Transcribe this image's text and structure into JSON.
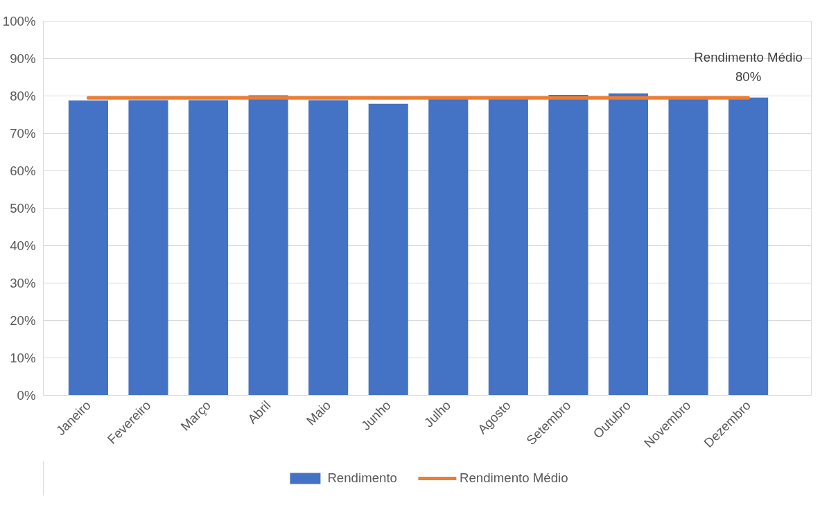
{
  "chart_data": {
    "type": "bar",
    "categories": [
      "Janeiro",
      "Fevereiro",
      "Março",
      "Abril",
      "Maio",
      "Junho",
      "Julho",
      "Agosto",
      "Setembro",
      "Outubro",
      "Novembro",
      "Dezembro"
    ],
    "series": [
      {
        "name": "Rendimento",
        "color": "#4472c4",
        "values": [
          78.8,
          78.9,
          78.9,
          80.2,
          78.9,
          77.9,
          79.2,
          79.2,
          80.3,
          80.7,
          79.2,
          79.6
        ]
      },
      {
        "name": "Rendimento Médio",
        "type": "line",
        "color": "#ed7d31",
        "values": [
          79.5,
          79.5,
          79.5,
          79.5,
          79.5,
          79.5,
          79.5,
          79.5,
          79.5,
          79.5,
          79.5,
          79.5
        ]
      }
    ],
    "annotations": [
      "Rendimento Médio",
      "80%"
    ],
    "ylim": [
      0,
      100
    ],
    "yticks": [
      {
        "value": 0,
        "label": "0%"
      },
      {
        "value": 10,
        "label": "10%"
      },
      {
        "value": 20,
        "label": "20%"
      },
      {
        "value": 30,
        "label": "30%"
      },
      {
        "value": 40,
        "label": "40%"
      },
      {
        "value": 50,
        "label": "50%"
      },
      {
        "value": 60,
        "label": "60%"
      },
      {
        "value": 70,
        "label": "70%"
      },
      {
        "value": 80,
        "label": "80%"
      },
      {
        "value": 90,
        "label": "90%"
      },
      {
        "value": 100,
        "label": "100%"
      }
    ],
    "grid": "y",
    "legend": "bottom"
  }
}
